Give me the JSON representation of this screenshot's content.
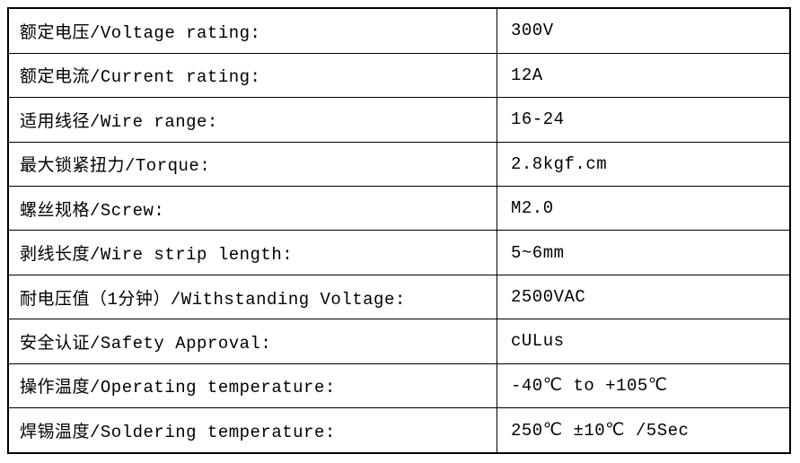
{
  "table": {
    "name": "product-specifications",
    "rows": [
      {
        "label": "额定电压/Voltage rating:",
        "value": "300V"
      },
      {
        "label": "额定电流/Current rating:",
        "value": "12A"
      },
      {
        "label": "适用线径/Wire range:",
        "value": "16-24"
      },
      {
        "label": "最大锁紧扭力/Torque:",
        "value": "2.8kgf.cm"
      },
      {
        "label": "螺丝规格/Screw:",
        "value": "M2.0"
      },
      {
        "label": "剥线长度/Wire strip length:",
        "value": "5~6mm"
      },
      {
        "label": "耐电压值（1分钟）/Withstanding Voltage:",
        "value": "2500VAC"
      },
      {
        "label": "安全认证/Safety Approval:",
        "value": "cULus"
      },
      {
        "label": "操作温度/Operating temperature:",
        "value": "-40℃ to +105℃"
      },
      {
        "label": "焊锡温度/Soldering temperature:",
        "value": "250℃ ±10℃ /5Sec"
      }
    ],
    "colors": {
      "border": "#000000",
      "text": "#000000",
      "background": "#ffffff"
    }
  }
}
